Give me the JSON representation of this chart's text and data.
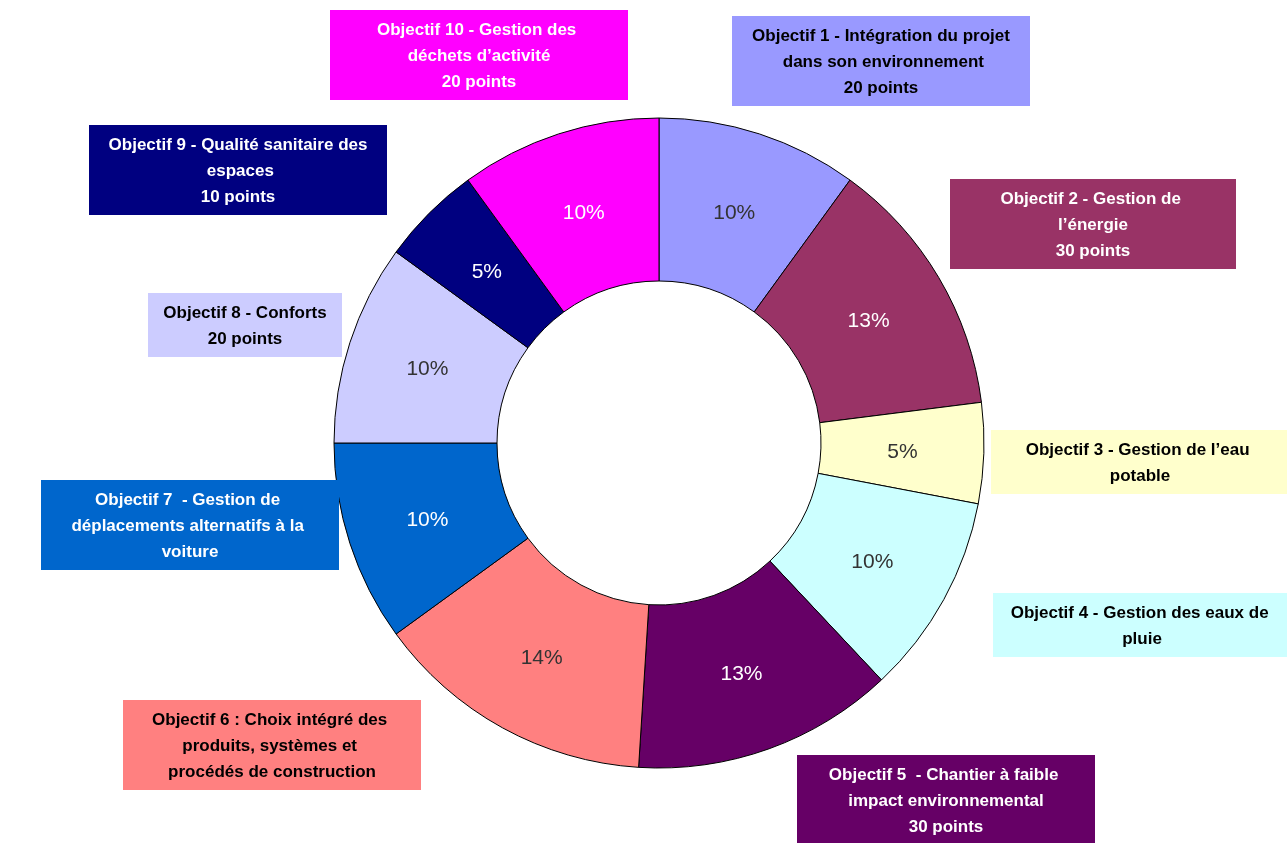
{
  "chart_data": {
    "type": "donut",
    "categories": [
      "Objectif 1 - Intégration du projet dans son environnement\n20 points",
      "Objectif 2 - Gestion de l’énergie\n30 points",
      "Objectif 3 - Gestion de l’eau potable",
      "Objectif 4 - Gestion des eaux de pluie",
      "Objectif 5  - Chantier à faible impact environnemental\n30 points",
      "Objectif 6 : Choix intégré des produits, systèmes et procédés de construction",
      "Objectif 7  - Gestion de déplacements alternatifs à la voiture",
      "Objectif 8 - Conforts\n20 points",
      "Objectif 9 - Qualité sanitaire des espaces\n10 points",
      "Objectif 10 - Gestion des déchets d’activité\n20 points"
    ],
    "values": [
      10,
      13,
      5,
      10,
      13,
      14,
      10,
      10,
      5,
      10
    ],
    "value_labels": [
      "10%",
      "13%",
      "5%",
      "10%",
      "13%",
      "14%",
      "10%",
      "10%",
      "5%",
      "10%"
    ],
    "colors": [
      "#9999ff",
      "#993366",
      "#ffffcc",
      "#ccffff",
      "#660066",
      "#ff8080",
      "#0066cc",
      "#ccccff",
      "#000080",
      "#ff00ff"
    ],
    "legend": false
  }
}
